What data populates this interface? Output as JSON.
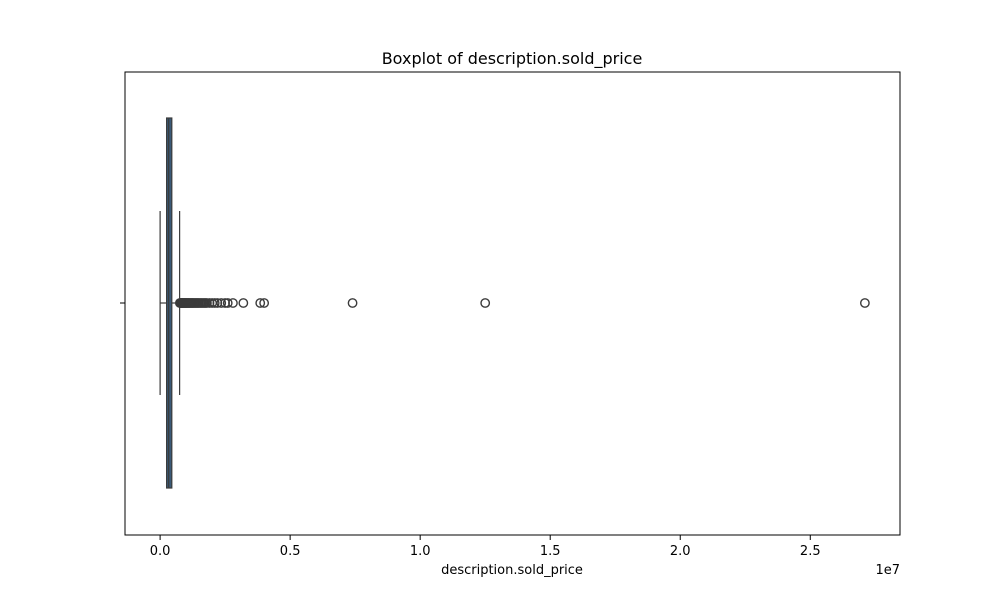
{
  "chart_data": {
    "type": "boxplot",
    "title": "Boxplot of description.sold_price",
    "xlabel": "description.sold_price",
    "ylabel": "",
    "x_scale_note": "1e7",
    "xlim": [
      -1350000,
      28450000
    ],
    "x_ticks": [
      {
        "value": 0,
        "label": "0.0"
      },
      {
        "value": 5000000,
        "label": "0.5"
      },
      {
        "value": 10000000,
        "label": "1.0"
      },
      {
        "value": 15000000,
        "label": "1.5"
      },
      {
        "value": 20000000,
        "label": "2.0"
      },
      {
        "value": 25000000,
        "label": "2.5"
      }
    ],
    "box": {
      "whisker_low": 0,
      "q1": 250000,
      "median": 330000,
      "q3": 450000,
      "whisker_high": 750000
    },
    "outliers": [
      760000,
      780000,
      800000,
      820000,
      840000,
      860000,
      880000,
      900000,
      920000,
      940000,
      960000,
      980000,
      1000000,
      1020000,
      1050000,
      1080000,
      1100000,
      1130000,
      1160000,
      1200000,
      1230000,
      1260000,
      1300000,
      1340000,
      1380000,
      1420000,
      1460000,
      1500000,
      1550000,
      1600000,
      1650000,
      1700000,
      1750000,
      1800000,
      1900000,
      2000000,
      2100000,
      2200000,
      2350000,
      2500000,
      2600000,
      2800000,
      3200000,
      3850000,
      4000000,
      7400000,
      12500000,
      27100000
    ],
    "colors": {
      "box_fill": "#3a5a78",
      "line": "#3b3b3b",
      "axes": "#000000"
    },
    "grid": false,
    "legend": "none"
  }
}
